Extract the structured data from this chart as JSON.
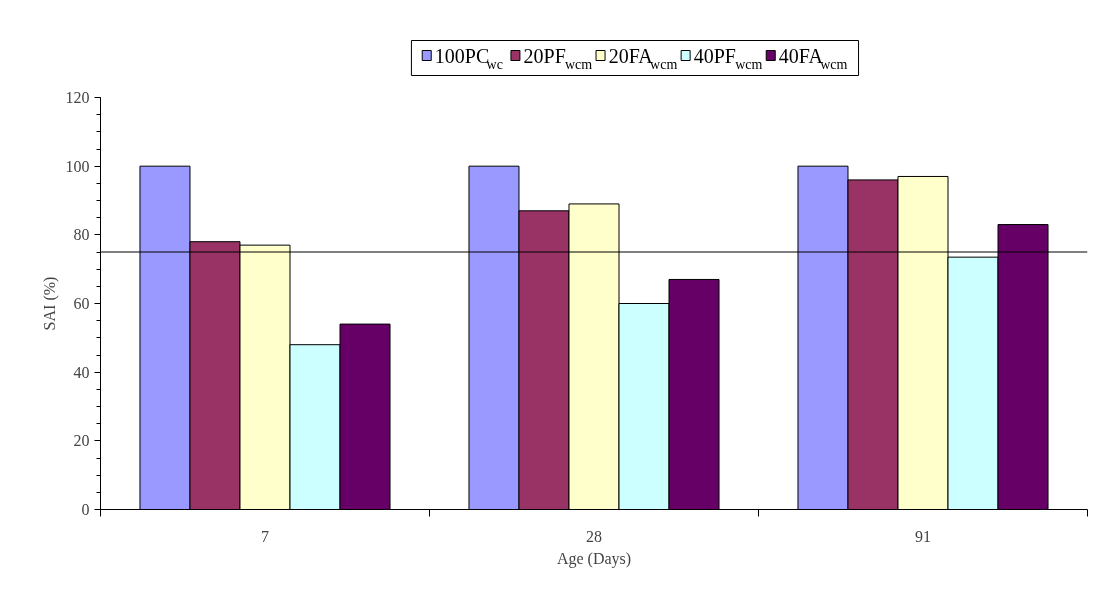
{
  "chart_data": {
    "type": "bar",
    "xlabel": "Age (Days)",
    "ylabel": "SAI (%)",
    "categories": [
      "7",
      "28",
      "91"
    ],
    "series": [
      {
        "name": "100PC$_{wc}$",
        "color": "#9999ff",
        "values": [
          100,
          100,
          100
        ]
      },
      {
        "name": "20PF$_{wcm}$",
        "color": "#993366",
        "values": [
          78,
          87,
          96
        ]
      },
      {
        "name": "20FA$_{wcm}$",
        "color": "#ffffcc",
        "values": [
          77,
          89,
          97
        ]
      },
      {
        "name": "40PF$_{wcm}$",
        "color": "#ccffff",
        "values": [
          48,
          60,
          73.5
        ]
      },
      {
        "name": "40FA$_{wcm}$",
        "color": "#660066",
        "values": [
          54,
          67,
          83
        ]
      }
    ],
    "ylim": [
      0,
      120
    ],
    "yticks": [
      0,
      20,
      40,
      60,
      80,
      100,
      120
    ],
    "ref_lines": [
      {
        "axis": "y",
        "value": 75,
        "color": "#000000"
      }
    ],
    "legend": "top",
    "grid": false
  }
}
